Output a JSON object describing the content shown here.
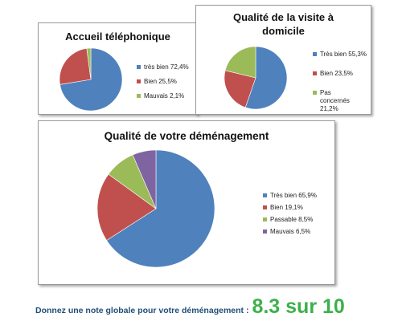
{
  "chart_data": [
    {
      "type": "pie",
      "title": "Accueil téléphonique",
      "legend_position": "right",
      "categories": [
        "très bien",
        "Bien",
        "Mauvais"
      ],
      "values": [
        72.4,
        25.5,
        2.1
      ],
      "labels": [
        "très bien 72,4%",
        "Bien 25,5%",
        "Mauvais 2,1%"
      ],
      "colors": [
        "#4f81bd",
        "#c0504d",
        "#9bbb59"
      ]
    },
    {
      "type": "pie",
      "title": "Qualité de la visite à domicile",
      "title_lines": [
        "Qualité de la visite à",
        "domicile"
      ],
      "legend_position": "right",
      "categories": [
        "Très bien",
        "Bien",
        "Pas concernés"
      ],
      "values": [
        55.3,
        23.5,
        21.2
      ],
      "labels": [
        "Très bien 55,3%",
        "Bien 23,5%",
        "Pas concernés 21,2%"
      ],
      "colors": [
        "#4f81bd",
        "#c0504d",
        "#9bbb59"
      ]
    },
    {
      "type": "pie",
      "title": "Qualité de votre déménagement",
      "legend_position": "right",
      "categories": [
        "Très bien",
        "Bien",
        "Passable",
        "Mauvais"
      ],
      "values": [
        65.9,
        19.1,
        8.5,
        6.5
      ],
      "labels": [
        "Très bien 65,9%",
        "Bien 19,1%",
        "Passable 8,5%",
        "Mauvais 6,5%"
      ],
      "colors": [
        "#4f81bd",
        "#c0504d",
        "#9bbb59",
        "#8064a2"
      ]
    }
  ],
  "footer": {
    "question": "Donnez une note globale pour votre déménagement :",
    "score": "8.3 sur 10"
  }
}
